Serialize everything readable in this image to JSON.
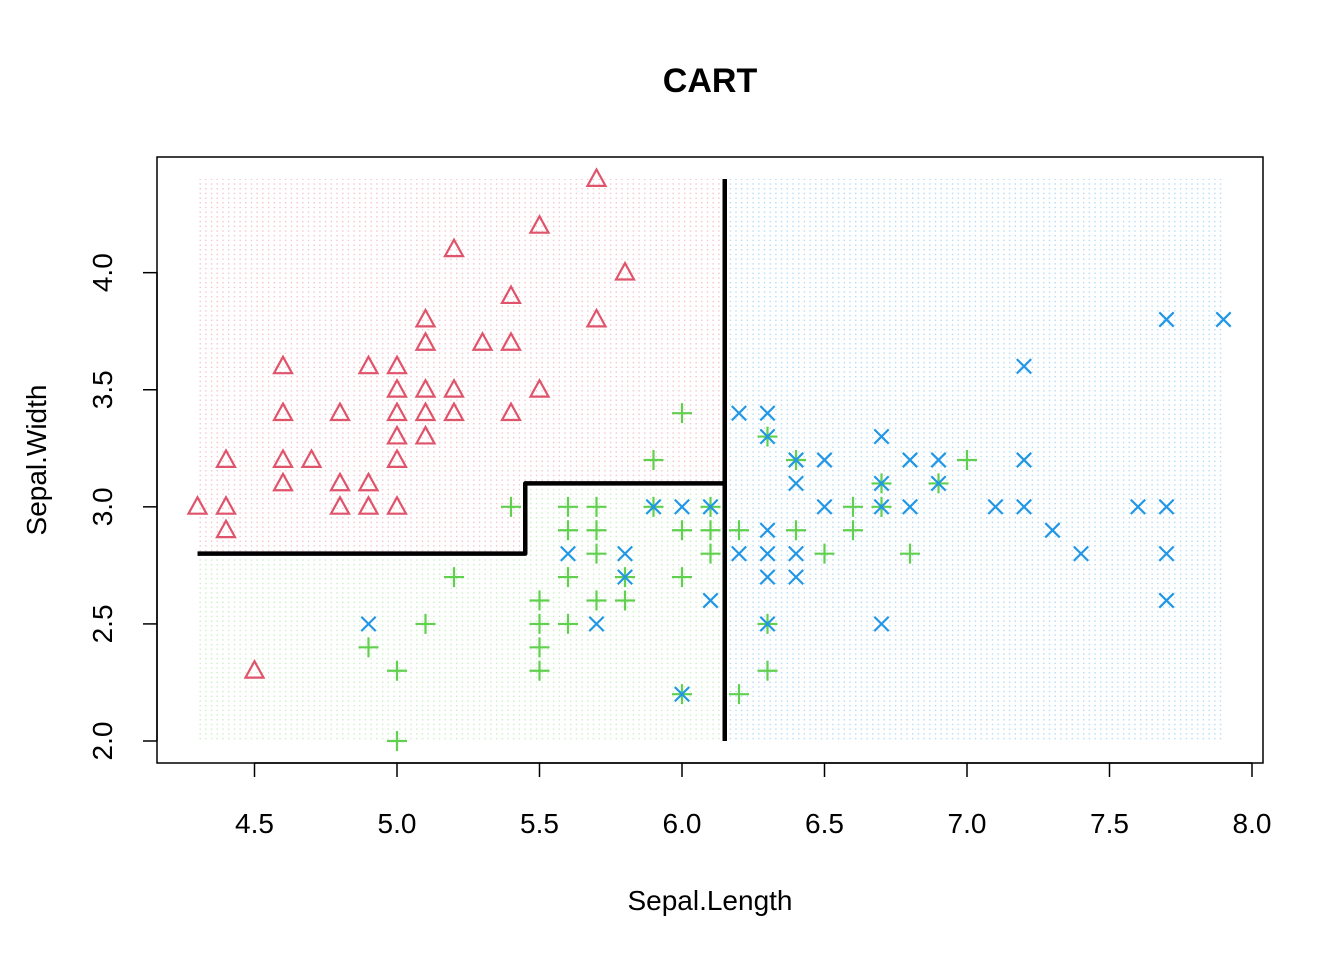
{
  "chart_data": {
    "type": "scatter",
    "title": "CART",
    "xlabel": "Sepal.Length",
    "ylabel": "Sepal.Width",
    "xlim": [
      4.3,
      7.9
    ],
    "ylim": [
      2.0,
      4.4
    ],
    "x_ticks": [
      "4.5",
      "5.0",
      "5.5",
      "6.0",
      "6.5",
      "7.0",
      "7.5",
      "8.0"
    ],
    "y_ticks": [
      "2.0",
      "2.5",
      "3.0",
      "3.5",
      "4.0"
    ],
    "grid": false,
    "legend": "none",
    "background": "dotted grid of predicted class regions",
    "region_colors": [
      "#DF536B",
      "#61D04F",
      "#2297E6"
    ],
    "decision_boundary": [
      {
        "x": [
          4.3,
          5.45,
          5.45,
          6.15,
          6.15
        ],
        "y": [
          2.8,
          2.8,
          3.1,
          3.1,
          4.4
        ]
      },
      {
        "x": [
          6.15,
          6.15
        ],
        "y": [
          2.0,
          3.1
        ]
      }
    ],
    "series": [
      {
        "marker": "triangle",
        "color": "#DF536B",
        "points": [
          [
            4.3,
            3.0
          ],
          [
            4.4,
            3.0
          ],
          [
            4.4,
            2.9
          ],
          [
            4.4,
            3.2
          ],
          [
            4.5,
            2.3
          ],
          [
            4.6,
            3.6
          ],
          [
            4.6,
            3.4
          ],
          [
            4.6,
            3.2
          ],
          [
            4.6,
            3.1
          ],
          [
            4.7,
            3.2
          ],
          [
            4.8,
            3.4
          ],
          [
            4.8,
            3.1
          ],
          [
            4.8,
            3.0
          ],
          [
            4.9,
            3.6
          ],
          [
            4.9,
            3.1
          ],
          [
            4.9,
            3.0
          ],
          [
            5.0,
            3.6
          ],
          [
            5.0,
            3.5
          ],
          [
            5.0,
            3.4
          ],
          [
            5.0,
            3.3
          ],
          [
            5.0,
            3.2
          ],
          [
            5.0,
            3.0
          ],
          [
            5.1,
            3.8
          ],
          [
            5.1,
            3.7
          ],
          [
            5.1,
            3.5
          ],
          [
            5.1,
            3.4
          ],
          [
            5.1,
            3.3
          ],
          [
            5.2,
            4.1
          ],
          [
            5.2,
            3.5
          ],
          [
            5.2,
            3.4
          ],
          [
            5.3,
            3.7
          ],
          [
            5.4,
            3.9
          ],
          [
            5.4,
            3.7
          ],
          [
            5.4,
            3.4
          ],
          [
            5.5,
            4.2
          ],
          [
            5.5,
            3.5
          ],
          [
            5.7,
            4.4
          ],
          [
            5.7,
            3.8
          ],
          [
            5.8,
            4.0
          ]
        ]
      },
      {
        "marker": "plus",
        "color": "#61D04F",
        "points": [
          [
            4.9,
            2.4
          ],
          [
            5.0,
            2.3
          ],
          [
            5.0,
            2.0
          ],
          [
            5.1,
            2.5
          ],
          [
            5.2,
            2.7
          ],
          [
            5.4,
            3.0
          ],
          [
            5.5,
            2.6
          ],
          [
            5.5,
            2.5
          ],
          [
            5.5,
            2.4
          ],
          [
            5.5,
            2.3
          ],
          [
            5.6,
            3.0
          ],
          [
            5.6,
            2.9
          ],
          [
            5.6,
            2.7
          ],
          [
            5.6,
            2.5
          ],
          [
            5.7,
            3.0
          ],
          [
            5.7,
            2.9
          ],
          [
            5.7,
            2.8
          ],
          [
            5.7,
            2.6
          ],
          [
            5.8,
            2.7
          ],
          [
            5.8,
            2.6
          ],
          [
            5.9,
            3.2
          ],
          [
            5.9,
            3.0
          ],
          [
            6.0,
            3.4
          ],
          [
            6.0,
            2.9
          ],
          [
            6.0,
            2.7
          ],
          [
            6.0,
            2.2
          ],
          [
            6.1,
            3.0
          ],
          [
            6.1,
            2.9
          ],
          [
            6.1,
            2.8
          ],
          [
            6.2,
            2.9
          ],
          [
            6.2,
            2.2
          ],
          [
            6.3,
            3.3
          ],
          [
            6.3,
            2.5
          ],
          [
            6.3,
            2.3
          ],
          [
            6.4,
            3.2
          ],
          [
            6.4,
            2.9
          ],
          [
            6.5,
            2.8
          ],
          [
            6.6,
            3.0
          ],
          [
            6.6,
            2.9
          ],
          [
            6.7,
            3.1
          ],
          [
            6.7,
            3.0
          ],
          [
            6.8,
            2.8
          ],
          [
            6.9,
            3.1
          ],
          [
            7.0,
            3.2
          ]
        ]
      },
      {
        "marker": "x",
        "color": "#2297E6",
        "points": [
          [
            4.9,
            2.5
          ],
          [
            5.6,
            2.8
          ],
          [
            5.7,
            2.5
          ],
          [
            5.8,
            2.8
          ],
          [
            5.8,
            2.7
          ],
          [
            5.9,
            3.0
          ],
          [
            6.0,
            3.0
          ],
          [
            6.0,
            2.2
          ],
          [
            6.1,
            3.0
          ],
          [
            6.1,
            2.6
          ],
          [
            6.2,
            3.4
          ],
          [
            6.2,
            2.8
          ],
          [
            6.3,
            3.4
          ],
          [
            6.3,
            3.3
          ],
          [
            6.3,
            2.9
          ],
          [
            6.3,
            2.8
          ],
          [
            6.3,
            2.7
          ],
          [
            6.3,
            2.5
          ],
          [
            6.4,
            3.2
          ],
          [
            6.4,
            3.1
          ],
          [
            6.4,
            2.8
          ],
          [
            6.4,
            2.7
          ],
          [
            6.5,
            3.2
          ],
          [
            6.5,
            3.0
          ],
          [
            6.7,
            3.3
          ],
          [
            6.7,
            3.1
          ],
          [
            6.7,
            3.0
          ],
          [
            6.7,
            2.5
          ],
          [
            6.8,
            3.2
          ],
          [
            6.8,
            3.0
          ],
          [
            6.9,
            3.2
          ],
          [
            6.9,
            3.1
          ],
          [
            7.1,
            3.0
          ],
          [
            7.2,
            3.6
          ],
          [
            7.2,
            3.2
          ],
          [
            7.2,
            3.0
          ],
          [
            7.3,
            2.9
          ],
          [
            7.4,
            2.8
          ],
          [
            7.6,
            3.0
          ],
          [
            7.7,
            3.8
          ],
          [
            7.7,
            3.0
          ],
          [
            7.7,
            2.8
          ],
          [
            7.7,
            2.6
          ],
          [
            7.9,
            3.8
          ]
        ]
      }
    ]
  }
}
